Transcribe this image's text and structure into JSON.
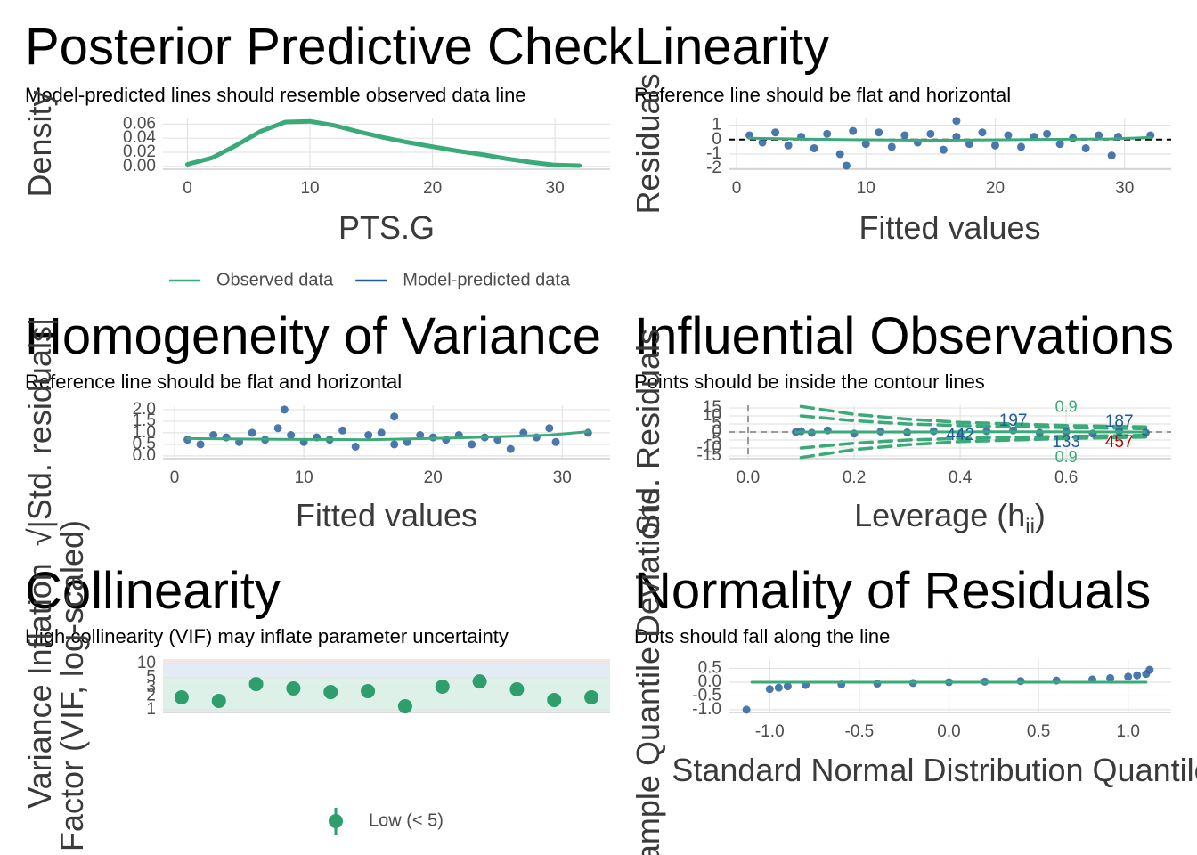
{
  "chart_data": [
    {
      "type": "line",
      "title": "Posterior Predictive Check",
      "subtitle": "Model-predicted lines should resemble observed data line",
      "xlabel": "PTS.G",
      "ylabel": "Density",
      "xlim": [
        -2,
        34.5
      ],
      "ylim": [
        -0.004,
        0.068
      ],
      "xticks": [
        0,
        10,
        20,
        30
      ],
      "yticks": [
        {
          "value": 0,
          "label": "0.00"
        },
        {
          "value": 0.02,
          "label": "0.02"
        },
        {
          "value": 0.04,
          "label": "0.04"
        },
        {
          "value": 0.06,
          "label": "0.06"
        }
      ],
      "grid": true,
      "series": [
        {
          "name": "Observed data",
          "color": "#3aaa78",
          "x": [
            0,
            2,
            4,
            6,
            8,
            10,
            12,
            14,
            16,
            18,
            20,
            22,
            24,
            26,
            28,
            30,
            32
          ],
          "values": [
            0.003,
            0.012,
            0.03,
            0.05,
            0.063,
            0.064,
            0.058,
            0.049,
            0.041,
            0.034,
            0.028,
            0.022,
            0.017,
            0.011,
            0.006,
            0.002,
            0.001
          ]
        },
        {
          "name": "Model-predicted data",
          "color": "#1f5c99",
          "x": [
            0,
            2,
            4,
            6,
            8,
            10,
            12,
            14,
            16,
            18,
            20,
            22,
            24,
            26,
            28,
            30,
            32
          ],
          "values": [
            0.004,
            0.013,
            0.031,
            0.051,
            0.062,
            0.063,
            0.057,
            0.048,
            0.04,
            0.034,
            0.028,
            0.022,
            0.016,
            0.011,
            0.006,
            0.003,
            0.001
          ]
        }
      ]
    },
    {
      "type": "scatter",
      "title": "Linearity",
      "subtitle": "Reference line should be flat and horizontal",
      "xlabel": "Fitted values",
      "ylabel": "Residuals",
      "xlim": [
        -0.62,
        33.6
      ],
      "ylim": [
        -2.05,
        1.47
      ],
      "xticks": [
        0,
        10,
        20,
        30
      ],
      "yticks": [
        -2,
        -1,
        0,
        1
      ],
      "grid": true,
      "hline": 0,
      "points": {
        "color": "#2a5f9e",
        "x": [
          1,
          2,
          3,
          4,
          5,
          6,
          7,
          8,
          8.5,
          9,
          10,
          11,
          12,
          13,
          14,
          15,
          16,
          17,
          17,
          18,
          19,
          20,
          21,
          22,
          23,
          24,
          25,
          26,
          27,
          28,
          29,
          29.5,
          32
        ],
        "values": [
          0.3,
          -0.2,
          0.5,
          -0.4,
          0.2,
          -0.6,
          0.4,
          -1.0,
          -1.8,
          0.6,
          -0.3,
          0.5,
          -0.5,
          0.3,
          -0.2,
          0.4,
          -0.7,
          1.3,
          0.2,
          -0.3,
          0.5,
          -0.4,
          0.3,
          -0.5,
          0.2,
          0.4,
          -0.3,
          0.1,
          -0.6,
          0.3,
          -1.1,
          0.2,
          0.3
        ]
      },
      "series": [
        {
          "color": "#3aaa78",
          "x": [
            1,
            8,
            15,
            22,
            29,
            32
          ],
          "values": [
            0.1,
            0,
            -0.05,
            0,
            0.05,
            0.15
          ]
        }
      ]
    },
    {
      "type": "scatter",
      "title": "Homogeneity of Variance",
      "subtitle": "Reference line should be flat and horizontal",
      "xlabel": "Fitted values",
      "ylabel": "√|Std. residuals|",
      "xlim": [
        -0.9,
        33.7
      ],
      "ylim": [
        -0.12,
        2.19
      ],
      "xticks": [
        0,
        10,
        20,
        30
      ],
      "yticks": [
        {
          "value": 0,
          "label": "0.0"
        },
        {
          "value": 0.5,
          "label": "0.5"
        },
        {
          "value": 1,
          "label": "1.0"
        },
        {
          "value": 1.5,
          "label": "1.5"
        },
        {
          "value": 2,
          "label": "2.0"
        }
      ],
      "grid": true,
      "points": {
        "color": "#2a5f9e",
        "x": [
          1,
          2,
          3,
          4,
          5,
          6,
          7,
          8,
          8.5,
          9,
          10,
          11,
          12,
          13,
          14,
          15,
          16,
          17,
          17,
          18,
          19,
          20,
          21,
          22,
          23,
          24,
          25,
          26,
          27,
          28,
          29,
          29.5,
          32
        ],
        "values": [
          0.7,
          0.5,
          0.9,
          0.8,
          0.6,
          1.0,
          0.7,
          1.2,
          2.0,
          0.9,
          0.6,
          0.8,
          0.7,
          1.1,
          0.4,
          0.9,
          1.0,
          1.7,
          0.5,
          0.6,
          0.9,
          0.8,
          0.7,
          0.9,
          0.5,
          0.8,
          0.7,
          0.3,
          1.0,
          0.8,
          1.2,
          0.6,
          1.0
        ]
      },
      "series": [
        {
          "color": "#3aaa78",
          "x": [
            1,
            8,
            15,
            22,
            29,
            32
          ],
          "values": [
            0.75,
            0.72,
            0.7,
            0.78,
            0.9,
            1.05
          ]
        }
      ]
    },
    {
      "type": "scatter",
      "title": "Influential Observations",
      "subtitle": "Points should be inside the contour lines",
      "xlabel": "Leverage (h",
      "xlabel_sub": "ii",
      "xlabel_end": ")",
      "ylabel": "Std. Residuals",
      "xlim": [
        -0.037,
        0.798
      ],
      "ylim": [
        -16.7,
        16.7
      ],
      "xticks": [
        {
          "value": 0,
          "label": "0.0"
        },
        {
          "value": 0.2,
          "label": "0.2"
        },
        {
          "value": 0.4,
          "label": "0.4"
        },
        {
          "value": 0.6,
          "label": "0.6"
        }
      ],
      "yticks": [
        -15,
        -10,
        -5,
        0,
        5,
        10,
        15
      ],
      "grid": true,
      "hline": 0,
      "vline": 0,
      "contours": [
        {
          "label": "0.9",
          "color": "#3aaa78",
          "x": [
            0.1,
            0.2,
            0.3,
            0.4,
            0.5,
            0.6,
            0.7,
            0.75
          ],
          "values": [
            16,
            11,
            8,
            6,
            5,
            4,
            3.5,
            3.2
          ]
        },
        {
          "color": "#3aaa78",
          "x": [
            0.1,
            0.2,
            0.3,
            0.4,
            0.5,
            0.6,
            0.7,
            0.75
          ],
          "values": [
            10,
            7,
            5,
            4,
            3.3,
            2.7,
            2.3,
            2
          ]
        },
        {
          "color": "#3aaa78",
          "x": [
            0.1,
            0.2,
            0.3,
            0.4,
            0.5,
            0.6,
            0.7,
            0.75
          ],
          "values": [
            -10,
            -7,
            -5,
            -4,
            -3.3,
            -2.7,
            -2.3,
            -2
          ]
        },
        {
          "label": "0.9",
          "color": "#3aaa78",
          "x": [
            0.1,
            0.2,
            0.3,
            0.4,
            0.5,
            0.6,
            0.7,
            0.75
          ],
          "values": [
            -16,
            -11,
            -8,
            -6,
            -5,
            -4,
            -3.5,
            -3.2
          ]
        }
      ],
      "points": {
        "color": "#2a5f9e",
        "x": [
          0.09,
          0.1,
          0.12,
          0.15,
          0.2,
          0.25,
          0.3,
          0.35,
          0.4,
          0.45,
          0.5,
          0.55,
          0.6,
          0.65,
          0.7,
          0.75
        ],
        "values": [
          0,
          0.5,
          -0.5,
          1,
          -1,
          0.3,
          -0.3,
          0.5,
          -1,
          0.5,
          1,
          -0.5,
          0.2,
          -1,
          0.5,
          -0.5
        ]
      },
      "series": [
        {
          "color": "#3aaa78",
          "x": [
            0.09,
            0.3,
            0.5,
            0.75
          ],
          "values": [
            0,
            0,
            0.1,
            0
          ]
        }
      ],
      "annotations": [
        {
          "text": "197",
          "x": 0.5,
          "y": 6.7,
          "color": "#1f5c99"
        },
        {
          "text": "442",
          "x": 0.4,
          "y": -2.2,
          "color": "#1f5c99"
        },
        {
          "text": "187",
          "x": 0.7,
          "y": 6,
          "color": "#1f5c99"
        },
        {
          "text": "133",
          "x": 0.6,
          "y": -6.7,
          "color": "#1f5c99"
        },
        {
          "text": "457",
          "x": 0.7,
          "y": -6.7,
          "color": "#c00000"
        }
      ]
    },
    {
      "type": "dot",
      "title": "Collinearity",
      "subtitle": "High collinearity (VIF) may inflate parameter uncertainty",
      "ylabel": [
        "Variance Inflation",
        "Factor (VIF, log-scaled)"
      ],
      "log_y": true,
      "ylim": [
        0.875,
        12.5
      ],
      "yticks": [
        1,
        2,
        3,
        5,
        10
      ],
      "grid": true,
      "band_breaks": [
        5,
        10
      ],
      "band_colors": [
        "#d6eee2",
        "#dce6f2",
        "#f4dede"
      ],
      "categories": [
        null,
        null,
        null,
        null,
        null,
        null,
        null,
        null,
        null,
        null,
        null,
        null
      ],
      "values": [
        1.86,
        1.56,
        3.6,
        2.9,
        2.42,
        2.53,
        1.19,
        3.16,
        4.1,
        2.77,
        1.63,
        1.86
      ],
      "color": "#2e9e6c",
      "legend": [
        {
          "name": "Low (< 5)",
          "color": "#2e9e6c"
        }
      ]
    },
    {
      "type": "scatter",
      "title": "Normality of Residuals",
      "subtitle": "Dots should fall along the line",
      "xlabel": "Standard Normal Distribution Quantiles",
      "ylabel": "Sample Quantile Deviations",
      "xlim": [
        -1.23,
        1.24
      ],
      "ylim": [
        -1.1,
        0.84
      ],
      "xticks": [
        {
          "value": -1,
          "label": "-1.0"
        },
        {
          "value": -0.5,
          "label": "-0.5"
        },
        {
          "value": 0,
          "label": "0.0"
        },
        {
          "value": 0.5,
          "label": "0.5"
        },
        {
          "value": 1,
          "label": "1.0"
        }
      ],
      "yticks": [
        {
          "value": -1,
          "label": "-1.0"
        },
        {
          "value": -0.5,
          "label": "-0.5"
        },
        {
          "value": 0,
          "label": "0.0"
        },
        {
          "value": 0.5,
          "label": "0.5"
        }
      ],
      "grid": true,
      "points": {
        "color": "#2a5f9e",
        "x": [
          -1.13,
          -1.0,
          -0.95,
          -0.9,
          -0.8,
          -0.6,
          -0.4,
          -0.2,
          0,
          0.2,
          0.4,
          0.6,
          0.8,
          0.9,
          1.0,
          1.05,
          1.1,
          1.12
        ],
        "values": [
          -1.0,
          -0.25,
          -0.2,
          -0.15,
          -0.1,
          -0.08,
          -0.05,
          -0.03,
          0,
          0.02,
          0.04,
          0.06,
          0.1,
          0.15,
          0.2,
          0.25,
          0.3,
          0.45
        ]
      },
      "series": [
        {
          "color": "#3aaa78",
          "x": [
            -1.1,
            1.1
          ],
          "values": [
            0,
            0
          ]
        }
      ]
    }
  ]
}
